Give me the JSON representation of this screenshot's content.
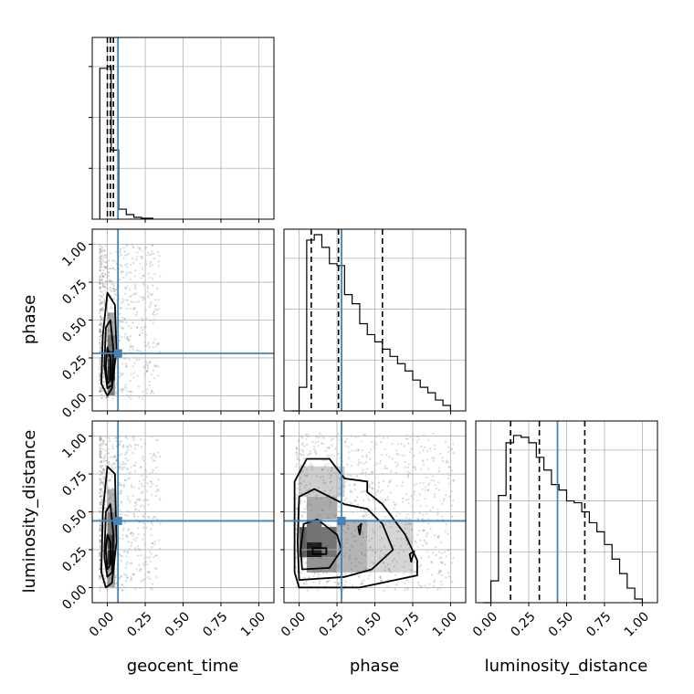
{
  "chart_data": {
    "type": "corner",
    "parameters": [
      "geocent_time",
      "phase",
      "luminosity_distance"
    ],
    "axis_range": [
      -0.1,
      1.1
    ],
    "ticks": [
      0.0,
      0.25,
      0.5,
      0.75,
      1.0
    ],
    "tick_labels": [
      "0.00",
      "0.25",
      "0.50",
      "0.75",
      "1.00"
    ],
    "grid": true,
    "truths": {
      "geocent_time": 0.07,
      "phase": 0.28,
      "luminosity_distance": 0.44
    },
    "truth_color": "#4682b4",
    "quantiles": {
      "geocent_time": [
        0.0,
        0.02,
        0.04
      ],
      "phase": [
        0.08,
        0.26,
        0.55
      ],
      "luminosity_distance": [
        0.13,
        0.32,
        0.62
      ]
    },
    "histograms": {
      "geocent_time": {
        "bin_edges": [
          -0.05,
          0.0,
          0.025,
          0.05,
          0.075,
          0.125,
          0.175,
          0.225,
          0.3
        ],
        "counts": [
          0.83,
          0.84,
          0.38,
          0.38,
          0.055,
          0.025,
          0.01,
          0.005
        ]
      },
      "phase": {
        "bin_edges": [
          -0.05,
          0.0,
          0.05,
          0.1,
          0.15,
          0.2,
          0.25,
          0.3,
          0.35,
          0.4,
          0.45,
          0.5,
          0.55,
          0.6,
          0.65,
          0.7,
          0.75,
          0.8,
          0.85,
          0.9,
          0.95,
          1.0
        ],
        "counts": [
          0.0,
          0.13,
          0.94,
          0.97,
          0.9,
          0.81,
          0.8,
          0.64,
          0.59,
          0.48,
          0.42,
          0.38,
          0.34,
          0.3,
          0.26,
          0.22,
          0.17,
          0.13,
          0.1,
          0.06,
          0.03
        ]
      },
      "luminosity_distance": {
        "bin_edges": [
          -0.05,
          0.0,
          0.05,
          0.1,
          0.15,
          0.2,
          0.25,
          0.3,
          0.35,
          0.4,
          0.45,
          0.5,
          0.55,
          0.6,
          0.65,
          0.7,
          0.75,
          0.8,
          0.85,
          0.9,
          0.95,
          1.0
        ],
        "counts": [
          0.0,
          0.12,
          0.59,
          0.88,
          0.92,
          0.91,
          0.88,
          0.8,
          0.73,
          0.65,
          0.62,
          0.56,
          0.55,
          0.5,
          0.44,
          0.39,
          0.32,
          0.24,
          0.16,
          0.08,
          0.02
        ]
      }
    },
    "density_cells": [
      {
        "pair": "phase|geocent_time",
        "x": 0.0,
        "y": 0.1,
        "w": 0.05,
        "h": 0.1,
        "density": 0.95
      },
      {
        "pair": "phase|geocent_time",
        "x": 0.0,
        "y": 0.2,
        "w": 0.05,
        "h": 0.1,
        "density": 0.85
      },
      {
        "pair": "phase|geocent_time",
        "x": 0.0,
        "y": 0.3,
        "w": 0.05,
        "h": 0.1,
        "density": 0.6
      },
      {
        "pair": "phase|geocent_time",
        "x": 0.0,
        "y": 0.4,
        "w": 0.05,
        "h": 0.15,
        "density": 0.35
      },
      {
        "pair": "phase|geocent_time",
        "x": 0.0,
        "y": 0.0,
        "w": 0.05,
        "h": 0.1,
        "density": 0.5
      },
      {
        "pair": "luminosity_distance|geocent_time",
        "x": 0.0,
        "y": 0.15,
        "w": 0.05,
        "h": 0.1,
        "density": 0.95
      },
      {
        "pair": "luminosity_distance|geocent_time",
        "x": 0.0,
        "y": 0.25,
        "w": 0.05,
        "h": 0.1,
        "density": 0.8
      },
      {
        "pair": "luminosity_distance|geocent_time",
        "x": 0.0,
        "y": 0.35,
        "w": 0.05,
        "h": 0.15,
        "density": 0.55
      },
      {
        "pair": "luminosity_distance|geocent_time",
        "x": 0.0,
        "y": 0.5,
        "w": 0.05,
        "h": 0.15,
        "density": 0.3
      },
      {
        "pair": "luminosity_distance|geocent_time",
        "x": 0.0,
        "y": 0.0,
        "w": 0.05,
        "h": 0.15,
        "density": 0.4
      },
      {
        "pair": "luminosity_distance|phase",
        "x": 0.05,
        "y": 0.2,
        "w": 0.1,
        "h": 0.1,
        "density": 1.0
      },
      {
        "pair": "luminosity_distance|phase",
        "x": 0.0,
        "y": 0.2,
        "w": 0.05,
        "h": 0.2,
        "density": 0.7
      },
      {
        "pair": "luminosity_distance|phase",
        "x": 0.15,
        "y": 0.2,
        "w": 0.1,
        "h": 0.2,
        "density": 0.6
      },
      {
        "pair": "luminosity_distance|phase",
        "x": 0.05,
        "y": 0.3,
        "w": 0.1,
        "h": 0.15,
        "density": 0.6
      },
      {
        "pair": "luminosity_distance|phase",
        "x": 0.05,
        "y": 0.1,
        "w": 0.2,
        "h": 0.1,
        "density": 0.45
      },
      {
        "pair": "luminosity_distance|phase",
        "x": 0.05,
        "y": 0.45,
        "w": 0.2,
        "h": 0.15,
        "density": 0.35
      },
      {
        "pair": "luminosity_distance|phase",
        "x": 0.25,
        "y": 0.1,
        "w": 0.2,
        "h": 0.35,
        "density": 0.3
      },
      {
        "pair": "luminosity_distance|phase",
        "x": 0.0,
        "y": 0.6,
        "w": 0.3,
        "h": 0.2,
        "density": 0.18
      },
      {
        "pair": "luminosity_distance|phase",
        "x": 0.45,
        "y": 0.1,
        "w": 0.3,
        "h": 0.35,
        "density": 0.15
      }
    ],
    "contours": [
      {
        "pair": "phase|geocent_time",
        "points": [
          [
            0.03,
            0.05
          ],
          [
            0.06,
            0.3
          ],
          [
            0.05,
            0.6
          ],
          [
            0.0,
            0.68
          ],
          [
            -0.03,
            0.4
          ],
          [
            -0.04,
            0.08
          ],
          [
            0.0,
            0.0
          ]
        ]
      },
      {
        "pair": "phase|geocent_time",
        "points": [
          [
            0.03,
            0.07
          ],
          [
            0.04,
            0.3
          ],
          [
            0.02,
            0.5
          ],
          [
            -0.01,
            0.45
          ],
          [
            -0.02,
            0.2
          ],
          [
            0.0,
            0.05
          ]
        ]
      },
      {
        "pair": "phase|geocent_time",
        "points": [
          [
            0.02,
            0.1
          ],
          [
            0.02,
            0.25
          ],
          [
            0.0,
            0.32
          ],
          [
            -0.01,
            0.2
          ],
          [
            0.0,
            0.08
          ]
        ]
      },
      {
        "pair": "luminosity_distance|geocent_time",
        "points": [
          [
            0.03,
            0.03
          ],
          [
            0.06,
            0.3
          ],
          [
            0.05,
            0.75
          ],
          [
            0.0,
            0.8
          ],
          [
            -0.03,
            0.5
          ],
          [
            -0.04,
            0.1
          ],
          [
            -0.01,
            0.0
          ]
        ]
      },
      {
        "pair": "luminosity_distance|geocent_time",
        "points": [
          [
            0.03,
            0.1
          ],
          [
            0.04,
            0.35
          ],
          [
            0.02,
            0.55
          ],
          [
            -0.01,
            0.5
          ],
          [
            -0.02,
            0.2
          ],
          [
            0.0,
            0.07
          ]
        ]
      },
      {
        "pair": "luminosity_distance|geocent_time",
        "points": [
          [
            0.02,
            0.15
          ],
          [
            0.02,
            0.3
          ],
          [
            0.0,
            0.35
          ],
          [
            -0.01,
            0.25
          ],
          [
            0.0,
            0.12
          ]
        ]
      },
      {
        "pair": "luminosity_distance|phase",
        "points": [
          [
            0.0,
            0.0
          ],
          [
            0.4,
            0.0
          ],
          [
            0.78,
            0.08
          ],
          [
            0.78,
            0.18
          ],
          [
            0.7,
            0.35
          ],
          [
            0.55,
            0.55
          ],
          [
            0.45,
            0.63
          ],
          [
            0.45,
            0.7
          ],
          [
            0.3,
            0.72
          ],
          [
            0.2,
            0.85
          ],
          [
            0.05,
            0.85
          ],
          [
            -0.03,
            0.7
          ],
          [
            -0.03,
            0.1
          ]
        ]
      },
      {
        "pair": "luminosity_distance|phase",
        "points": [
          [
            0.0,
            0.05
          ],
          [
            0.3,
            0.07
          ],
          [
            0.48,
            0.12
          ],
          [
            0.62,
            0.25
          ],
          [
            0.55,
            0.42
          ],
          [
            0.45,
            0.52
          ],
          [
            0.3,
            0.55
          ],
          [
            0.1,
            0.65
          ],
          [
            0.0,
            0.6
          ],
          [
            -0.01,
            0.3
          ]
        ]
      },
      {
        "pair": "luminosity_distance|phase",
        "points": [
          [
            0.02,
            0.12
          ],
          [
            0.2,
            0.13
          ],
          [
            0.28,
            0.25
          ],
          [
            0.25,
            0.35
          ],
          [
            0.12,
            0.45
          ],
          [
            0.03,
            0.42
          ],
          [
            0.01,
            0.25
          ]
        ]
      },
      {
        "pair": "luminosity_distance|phase",
        "points": [
          [
            0.09,
            0.22
          ],
          [
            0.18,
            0.22
          ],
          [
            0.18,
            0.26
          ],
          [
            0.09,
            0.26
          ]
        ]
      },
      {
        "pair": "luminosity_distance|phase",
        "points": [
          [
            0.4,
            0.35
          ],
          [
            0.41,
            0.42
          ],
          [
            0.39,
            0.4
          ]
        ]
      },
      {
        "pair": "luminosity_distance|phase",
        "points": [
          [
            0.74,
            0.17
          ],
          [
            0.76,
            0.24
          ],
          [
            0.73,
            0.22
          ]
        ]
      }
    ],
    "scatter_clouds": [
      {
        "pair": "phase|geocent_time",
        "x": [
          -0.05,
          0.35
        ],
        "y": [
          -0.02,
          1.0
        ],
        "count": 700
      },
      {
        "pair": "luminosity_distance|geocent_time",
        "x": [
          -0.05,
          0.35
        ],
        "y": [
          -0.02,
          1.0
        ],
        "count": 700
      },
      {
        "pair": "luminosity_distance|phase",
        "x": [
          -0.02,
          1.02
        ],
        "y": [
          -0.02,
          1.02
        ],
        "count": 900
      }
    ]
  }
}
